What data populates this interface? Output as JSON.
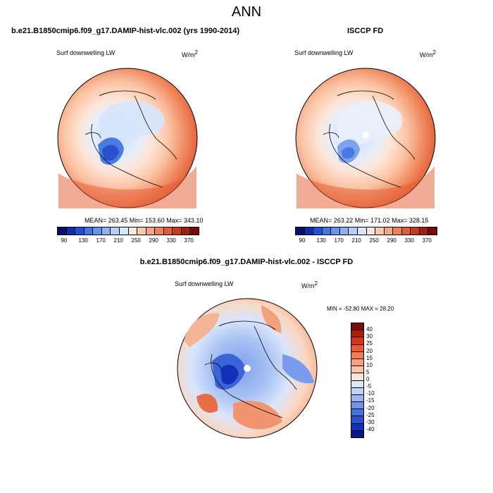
{
  "page": {
    "title": "ANN"
  },
  "panels": [
    {
      "heading": "b.e21.B1850cmip6.f09_g17.DAMIP-hist-vlc.002 (yrs 1990-2014)",
      "field_label": "Surf downwelling LW",
      "units_base": "W/m",
      "units_sup": "2",
      "stats": "MEAN= 263.45  Min= 153.60  Max= 343.10"
    },
    {
      "heading": "ISCCP FD",
      "field_label": "Surf downwelling LW",
      "units_base": "W/m",
      "units_sup": "2",
      "stats": "MEAN= 263.22  Min= 171.02  Max= 328.15"
    },
    {
      "heading": "b.e21.B1850cmip6.f09_g17.DAMIP-hist-vlc.002 - ISCCP FD",
      "field_label": "Surf downwelling LW",
      "units_base": "W/m",
      "units_sup": "2",
      "stats": "MIN = -52.80 MAX =  28.20"
    }
  ],
  "abs_colorbar": {
    "colors": [
      "#08106e",
      "#0a2fb0",
      "#1e50d8",
      "#3c78e6",
      "#6496ee",
      "#8cb4f4",
      "#b4d0fa",
      "#d8e8fc",
      "#fde8dc",
      "#fcc8aa",
      "#f8a680",
      "#f0805a",
      "#e45c36",
      "#cc3a1c",
      "#a61e0e",
      "#760a04"
    ],
    "labels": [
      "90",
      "130",
      "170",
      "210",
      "250",
      "290",
      "330",
      "370"
    ]
  },
  "diff_colorbar": {
    "colors": [
      "#7a0a04",
      "#b01a08",
      "#d8341a",
      "#ec5a30",
      "#f47c50",
      "#f8a078",
      "#fcc4a4",
      "#fde4d6",
      "#dce8fa",
      "#bcd2f6",
      "#98b6f0",
      "#7094e8",
      "#4a70e0",
      "#2a4ed4",
      "#1230b8",
      "#08168c"
    ],
    "labels": [
      "40",
      "30",
      "25",
      "20",
      "15",
      "10",
      "5",
      "0",
      "-5",
      "-10",
      "-15",
      "-20",
      "-25",
      "-30",
      "-40"
    ]
  }
}
